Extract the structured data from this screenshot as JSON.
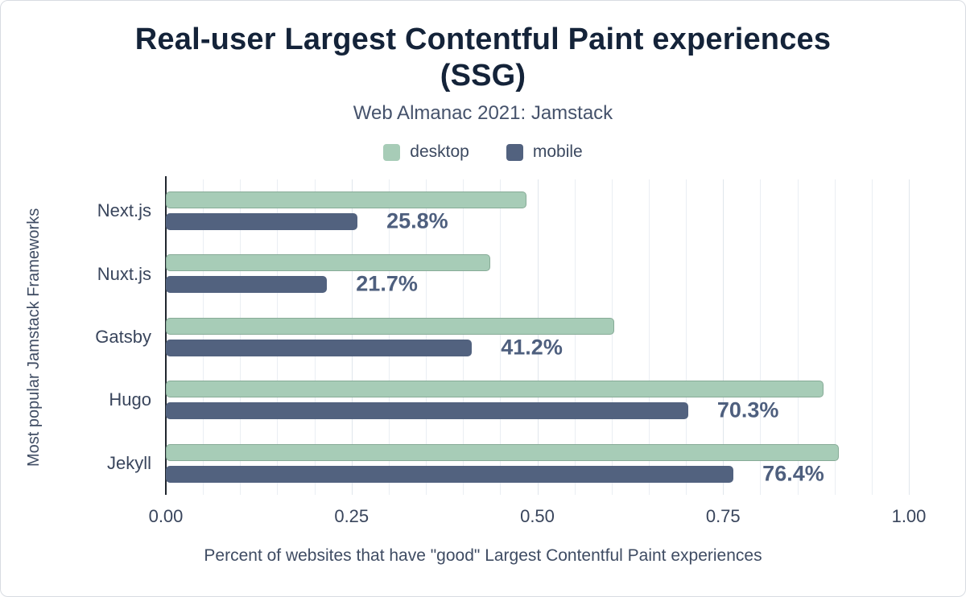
{
  "header": {
    "title": "Real-user Largest Contentful Paint experiences\n(SSG)",
    "subtitle": "Web Almanac 2021: Jamstack"
  },
  "chart_data": {
    "type": "bar",
    "orientation": "horizontal",
    "title": "Real-user Largest Contentful Paint experiences (SSG)",
    "subtitle": "Web Almanac 2021: Jamstack",
    "categories": [
      "Next.js",
      "Nuxt.js",
      "Gatsby",
      "Hugo",
      "Jekyll"
    ],
    "series": [
      {
        "name": "desktop",
        "color": "#a7ccb7",
        "values": [
          0.485,
          0.437,
          0.603,
          0.885,
          0.906
        ]
      },
      {
        "name": "mobile",
        "color": "#52627f",
        "values": [
          0.258,
          0.217,
          0.412,
          0.703,
          0.764
        ]
      }
    ],
    "value_labels": [
      "25.8%",
      "21.7%",
      "41.2%",
      "70.3%",
      "76.4%"
    ],
    "xlabel": "Percent of websites that have \"good\" Largest Contentful Paint experiences",
    "ylabel": "Most popular Jamstack Frameworks",
    "xlim": [
      0,
      1.0
    ],
    "xticks": [
      "0.00",
      "0.25",
      "0.50",
      "0.75",
      "1.00"
    ],
    "grid_minor_step": 0.05,
    "legend_position": "top",
    "colors": {
      "title": "#142339",
      "axis_text": "#39455c",
      "value_label": "#4e5f7e",
      "gridline": "#eaeef3"
    }
  }
}
